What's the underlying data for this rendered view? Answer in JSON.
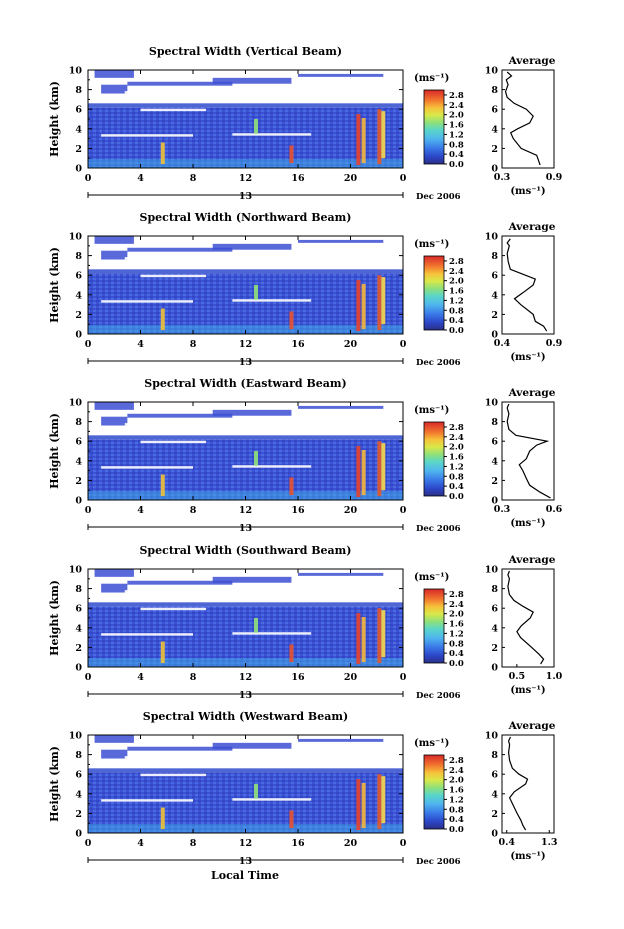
{
  "figure": {
    "x_axis_label": "Local Time",
    "date_label": "Dec 2006",
    "colorbar_unit": "(ms⁻¹)",
    "average_title": "Average",
    "average_unit": "(ms⁻¹)",
    "y_axis_label": "Height (km)"
  },
  "chart_data": [
    {
      "type": "heatmap",
      "title": "Spectral Width (Vertical Beam)",
      "ylabel": "Height (km)",
      "x_ticks": [
        "0",
        "4",
        "8",
        "12",
        "16",
        "20",
        "0"
      ],
      "y_ticks": [
        "0",
        "2",
        "4",
        "6",
        "8",
        "10"
      ],
      "xlim": [
        0,
        24
      ],
      "ylim": [
        0,
        10
      ],
      "date_tick": "13",
      "colorbar_ticks": [
        "0.0",
        "0.4",
        "0.8",
        "1.2",
        "1.6",
        "2.0",
        "2.4",
        "2.8"
      ],
      "colorbar_range": [
        0.0,
        3.0
      ],
      "average": {
        "x_ticks": [
          "0.3",
          "0.9"
        ],
        "xlim": [
          0.3,
          0.9
        ],
        "profile": [
          [
            0.74,
            0.3
          ],
          [
            0.72,
            0.8
          ],
          [
            0.7,
            1.3
          ],
          [
            0.52,
            2.0
          ],
          [
            0.43,
            3.0
          ],
          [
            0.4,
            3.6
          ],
          [
            0.48,
            4.0
          ],
          [
            0.62,
            4.6
          ],
          [
            0.66,
            5.3
          ],
          [
            0.58,
            6.0
          ],
          [
            0.44,
            6.6
          ],
          [
            0.36,
            7.2
          ],
          [
            0.34,
            7.8
          ],
          [
            0.37,
            8.5
          ],
          [
            0.35,
            9.0
          ],
          [
            0.41,
            9.4
          ],
          [
            0.36,
            9.8
          ]
        ]
      }
    },
    {
      "type": "heatmap",
      "title": "Spectral Width (Northward Beam)",
      "ylabel": "Height (km)",
      "x_ticks": [
        "0",
        "4",
        "8",
        "12",
        "16",
        "20",
        "0"
      ],
      "y_ticks": [
        "0",
        "2",
        "4",
        "6",
        "8",
        "10"
      ],
      "xlim": [
        0,
        24
      ],
      "ylim": [
        0,
        10
      ],
      "date_tick": "13",
      "colorbar_ticks": [
        "0.0",
        "0.4",
        "0.8",
        "1.2",
        "1.6",
        "2.0",
        "2.4",
        "2.8"
      ],
      "colorbar_range": [
        0.0,
        3.0
      ],
      "average": {
        "x_ticks": [
          "0.4",
          "0.9"
        ],
        "xlim": [
          0.4,
          0.9
        ],
        "profile": [
          [
            0.83,
            0.3
          ],
          [
            0.8,
            0.8
          ],
          [
            0.72,
            1.3
          ],
          [
            0.7,
            2.0
          ],
          [
            0.58,
            3.0
          ],
          [
            0.52,
            3.6
          ],
          [
            0.6,
            4.2
          ],
          [
            0.7,
            5.0
          ],
          [
            0.72,
            5.6
          ],
          [
            0.6,
            6.1
          ],
          [
            0.48,
            6.6
          ],
          [
            0.46,
            7.4
          ],
          [
            0.45,
            8.2
          ],
          [
            0.47,
            9.0
          ],
          [
            0.45,
            9.3
          ],
          [
            0.48,
            9.7
          ]
        ]
      }
    },
    {
      "type": "heatmap",
      "title": "Spectral Width (Eastward Beam)",
      "ylabel": "Height (km)",
      "x_ticks": [
        "0",
        "4",
        "8",
        "12",
        "16",
        "20",
        "0"
      ],
      "y_ticks": [
        "0",
        "2",
        "4",
        "6",
        "8",
        "10"
      ],
      "xlim": [
        0,
        24
      ],
      "ylim": [
        0,
        10
      ],
      "date_tick": "13",
      "colorbar_ticks": [
        "0.0",
        "0.4",
        "0.8",
        "1.2",
        "1.6",
        "2.0",
        "2.4",
        "2.8"
      ],
      "colorbar_range": [
        0.0,
        3.0
      ],
      "average": {
        "x_ticks": [
          "0.3",
          "0.6"
        ],
        "xlim": [
          0.3,
          0.6
        ],
        "profile": [
          [
            0.58,
            0.2
          ],
          [
            0.52,
            0.8
          ],
          [
            0.46,
            1.5
          ],
          [
            0.44,
            2.2
          ],
          [
            0.42,
            3.0
          ],
          [
            0.4,
            3.6
          ],
          [
            0.44,
            4.2
          ],
          [
            0.46,
            5.0
          ],
          [
            0.5,
            5.6
          ],
          [
            0.56,
            6.0
          ],
          [
            0.38,
            6.6
          ],
          [
            0.34,
            7.2
          ],
          [
            0.33,
            8.0
          ],
          [
            0.34,
            8.8
          ],
          [
            0.33,
            9.4
          ],
          [
            0.34,
            9.8
          ]
        ]
      }
    },
    {
      "type": "heatmap",
      "title": "Spectral Width (Southward Beam)",
      "ylabel": "Height (km)",
      "x_ticks": [
        "0",
        "4",
        "8",
        "12",
        "16",
        "20",
        "0"
      ],
      "y_ticks": [
        "0",
        "2",
        "4",
        "6",
        "8",
        "10"
      ],
      "xlim": [
        0,
        24
      ],
      "ylim": [
        0,
        10
      ],
      "date_tick": "13",
      "colorbar_ticks": [
        "0.0",
        "0.4",
        "0.8",
        "1.2",
        "1.6",
        "2.0",
        "2.4",
        "2.8"
      ],
      "colorbar_range": [
        0.0,
        3.0
      ],
      "average": {
        "x_ticks": [
          "0.5",
          "1.0"
        ],
        "xlim": [
          0.3,
          1.0
        ],
        "profile": [
          [
            0.82,
            0.3
          ],
          [
            0.86,
            0.8
          ],
          [
            0.8,
            1.3
          ],
          [
            0.7,
            2.0
          ],
          [
            0.55,
            3.0
          ],
          [
            0.5,
            3.6
          ],
          [
            0.56,
            4.2
          ],
          [
            0.68,
            5.0
          ],
          [
            0.72,
            5.6
          ],
          [
            0.58,
            6.2
          ],
          [
            0.46,
            6.8
          ],
          [
            0.4,
            7.4
          ],
          [
            0.38,
            8.2
          ],
          [
            0.4,
            9.0
          ],
          [
            0.38,
            9.4
          ],
          [
            0.4,
            9.8
          ]
        ]
      }
    },
    {
      "type": "heatmap",
      "title": "Spectral Width (Westward Beam)",
      "ylabel": "Height (km)",
      "xlabel": "Local Time",
      "x_ticks": [
        "0",
        "4",
        "8",
        "12",
        "16",
        "20",
        "0"
      ],
      "y_ticks": [
        "0",
        "2",
        "4",
        "6",
        "8",
        "10"
      ],
      "xlim": [
        0,
        24
      ],
      "ylim": [
        0,
        10
      ],
      "date_tick": "13",
      "colorbar_ticks": [
        "0.0",
        "0.4",
        "0.8",
        "1.2",
        "1.6",
        "2.0",
        "2.4",
        "2.8"
      ],
      "colorbar_range": [
        0.0,
        3.0
      ],
      "average": {
        "x_ticks": [
          "0.4",
          "1.3"
        ],
        "xlim": [
          0.3,
          1.4
        ],
        "profile": [
          [
            0.8,
            0.3
          ],
          [
            0.74,
            0.8
          ],
          [
            0.7,
            1.3
          ],
          [
            0.62,
            2.0
          ],
          [
            0.52,
            3.0
          ],
          [
            0.46,
            3.6
          ],
          [
            0.56,
            4.2
          ],
          [
            0.8,
            5.0
          ],
          [
            0.84,
            5.5
          ],
          [
            0.66,
            6.0
          ],
          [
            0.52,
            6.6
          ],
          [
            0.46,
            7.4
          ],
          [
            0.44,
            8.2
          ],
          [
            0.46,
            9.0
          ],
          [
            0.44,
            9.4
          ],
          [
            0.48,
            9.8
          ]
        ]
      }
    }
  ]
}
